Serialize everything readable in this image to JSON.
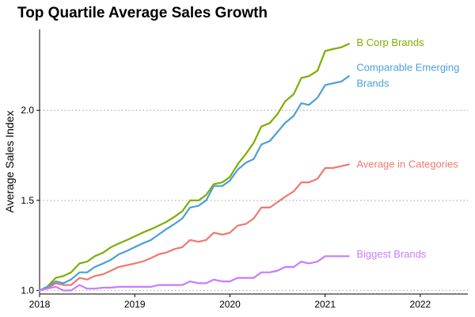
{
  "chart_data": {
    "type": "line",
    "title": "Top Quartile Average Sales Growth",
    "xlabel": "",
    "ylabel": "Average Sales Index",
    "xlim": [
      2018.0,
      2022.5
    ],
    "ylim": [
      0.98,
      2.45
    ],
    "x_ticks": [
      2018,
      2019,
      2020,
      2021,
      2022
    ],
    "y_ticks": [
      1.0,
      1.5,
      2.0
    ],
    "y_tick_labels": [
      "1.0",
      "1.5",
      "2.0"
    ],
    "grid": "horizontal dotted",
    "legend": "direct labels at line ends",
    "series": [
      {
        "name": "B Corp Brands",
        "color": "#7cae00",
        "x": [
          2018.0,
          2018.08,
          2018.17,
          2018.25,
          2018.33,
          2018.42,
          2018.5,
          2018.58,
          2018.67,
          2018.75,
          2018.83,
          2018.92,
          2019.0,
          2019.08,
          2019.17,
          2019.25,
          2019.33,
          2019.42,
          2019.5,
          2019.58,
          2019.67,
          2019.75,
          2019.83,
          2019.92,
          2020.0,
          2020.08,
          2020.17,
          2020.25,
          2020.33,
          2020.42,
          2020.5,
          2020.58,
          2020.67,
          2020.75,
          2020.83,
          2020.92,
          2021.0,
          2021.08,
          2021.17,
          2021.25
        ],
        "values": [
          1.0,
          1.02,
          1.07,
          1.08,
          1.1,
          1.15,
          1.16,
          1.19,
          1.21,
          1.24,
          1.26,
          1.28,
          1.3,
          1.32,
          1.34,
          1.36,
          1.38,
          1.41,
          1.44,
          1.5,
          1.5,
          1.53,
          1.59,
          1.6,
          1.63,
          1.7,
          1.76,
          1.82,
          1.91,
          1.93,
          1.98,
          2.05,
          2.09,
          2.18,
          2.19,
          2.22,
          2.33,
          2.34,
          2.35,
          2.37
        ]
      },
      {
        "name": "Comparable Emerging Brands",
        "color": "#4a9fd8",
        "x": [
          2018.0,
          2018.08,
          2018.17,
          2018.25,
          2018.33,
          2018.42,
          2018.5,
          2018.58,
          2018.67,
          2018.75,
          2018.83,
          2018.92,
          2019.0,
          2019.08,
          2019.17,
          2019.25,
          2019.33,
          2019.42,
          2019.5,
          2019.58,
          2019.67,
          2019.75,
          2019.83,
          2019.92,
          2020.0,
          2020.08,
          2020.17,
          2020.25,
          2020.33,
          2020.42,
          2020.5,
          2020.58,
          2020.67,
          2020.75,
          2020.83,
          2020.92,
          2021.0,
          2021.08,
          2021.17,
          2021.25
        ],
        "values": [
          1.0,
          1.02,
          1.05,
          1.04,
          1.06,
          1.1,
          1.1,
          1.13,
          1.15,
          1.17,
          1.2,
          1.22,
          1.24,
          1.26,
          1.28,
          1.31,
          1.34,
          1.37,
          1.4,
          1.46,
          1.47,
          1.5,
          1.58,
          1.58,
          1.61,
          1.67,
          1.71,
          1.73,
          1.81,
          1.83,
          1.88,
          1.93,
          1.97,
          2.04,
          2.03,
          2.07,
          2.14,
          2.15,
          2.16,
          2.19
        ]
      },
      {
        "name": "Average in Categories",
        "color": "#f07870",
        "x": [
          2018.0,
          2018.08,
          2018.17,
          2018.25,
          2018.33,
          2018.42,
          2018.5,
          2018.58,
          2018.67,
          2018.75,
          2018.83,
          2018.92,
          2019.0,
          2019.08,
          2019.17,
          2019.25,
          2019.33,
          2019.42,
          2019.5,
          2019.58,
          2019.67,
          2019.75,
          2019.83,
          2019.92,
          2020.0,
          2020.08,
          2020.17,
          2020.25,
          2020.33,
          2020.42,
          2020.5,
          2020.58,
          2020.67,
          2020.75,
          2020.83,
          2020.92,
          2021.0,
          2021.08,
          2021.17,
          2021.25
        ],
        "values": [
          1.0,
          1.01,
          1.04,
          1.03,
          1.03,
          1.07,
          1.06,
          1.08,
          1.09,
          1.11,
          1.13,
          1.14,
          1.15,
          1.16,
          1.18,
          1.2,
          1.21,
          1.23,
          1.24,
          1.28,
          1.27,
          1.28,
          1.32,
          1.31,
          1.32,
          1.36,
          1.37,
          1.4,
          1.46,
          1.46,
          1.49,
          1.52,
          1.55,
          1.6,
          1.6,
          1.62,
          1.68,
          1.68,
          1.69,
          1.7
        ]
      },
      {
        "name": "Biggest Brands",
        "color": "#c77cff",
        "x": [
          2018.0,
          2018.08,
          2018.17,
          2018.25,
          2018.33,
          2018.42,
          2018.5,
          2018.58,
          2018.67,
          2018.75,
          2018.83,
          2018.92,
          2019.0,
          2019.08,
          2019.17,
          2019.25,
          2019.33,
          2019.42,
          2019.5,
          2019.58,
          2019.67,
          2019.75,
          2019.83,
          2019.92,
          2020.0,
          2020.08,
          2020.17,
          2020.25,
          2020.33,
          2020.42,
          2020.5,
          2020.58,
          2020.67,
          2020.75,
          2020.83,
          2020.92,
          2021.0,
          2021.08,
          2021.17,
          2021.25
        ],
        "values": [
          1.0,
          1.01,
          1.02,
          1.0,
          1.0,
          1.03,
          1.01,
          1.01,
          1.015,
          1.015,
          1.02,
          1.02,
          1.02,
          1.02,
          1.02,
          1.03,
          1.03,
          1.03,
          1.03,
          1.05,
          1.04,
          1.04,
          1.06,
          1.05,
          1.05,
          1.07,
          1.07,
          1.07,
          1.1,
          1.1,
          1.11,
          1.13,
          1.13,
          1.16,
          1.15,
          1.16,
          1.19,
          1.19,
          1.19,
          1.19
        ]
      }
    ]
  },
  "labels": [
    {
      "lines": [
        "B Corp Brands"
      ],
      "anchor_x": 2021.33,
      "anchor_y": 2.38
    },
    {
      "lines": [
        "Comparable Emerging",
        "Brands"
      ],
      "anchor_x": 2021.33,
      "anchor_y": 2.24
    },
    {
      "lines": [
        "Average in Categories"
      ],
      "anchor_x": 2021.33,
      "anchor_y": 1.705
    },
    {
      "lines": [
        "Biggest Brands"
      ],
      "anchor_x": 2021.33,
      "anchor_y": 1.205
    }
  ]
}
